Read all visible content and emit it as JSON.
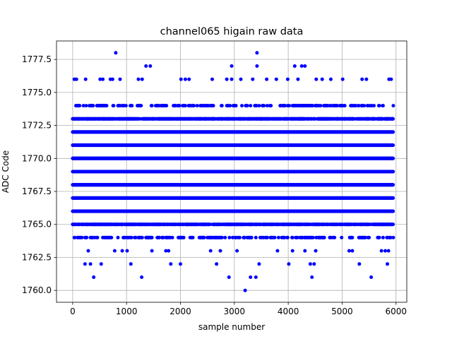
{
  "chart_data": {
    "type": "scatter",
    "title": "channel065 higain raw data",
    "xlabel": "sample number",
    "ylabel": "ADC Code",
    "xlim": [
      -300,
      6200
    ],
    "ylim": [
      1759.1,
      1778.9
    ],
    "xticks": [
      0,
      1000,
      2000,
      3000,
      4000,
      5000,
      6000
    ],
    "xtick_labels": [
      "0",
      "1000",
      "2000",
      "3000",
      "4000",
      "5000",
      "6000"
    ],
    "yticks": [
      1760.0,
      1762.5,
      1765.0,
      1767.5,
      1770.0,
      1772.5,
      1775.0,
      1777.5
    ],
    "ytick_labels": [
      "1760.0",
      "1762.5",
      "1765.0",
      "1767.5",
      "1770.0",
      "1772.5",
      "1775.0",
      "1777.5"
    ],
    "grid": true,
    "marker_color": "#0000ff",
    "series": [
      {
        "x_range": [
          0,
          5950
        ],
        "dense_levels": [
          1766,
          1767,
          1768,
          1769,
          1770,
          1771,
          1772
        ],
        "medium_levels": [
          1765,
          1773
        ],
        "sparse_levels": [
          1764,
          1774
        ],
        "outliers": [
          {
            "x": 800,
            "y": 1778
          },
          {
            "x": 3420,
            "y": 1778
          },
          {
            "x": 30,
            "y": 1776
          },
          {
            "x": 70,
            "y": 1776
          },
          {
            "x": 240,
            "y": 1776
          },
          {
            "x": 510,
            "y": 1776
          },
          {
            "x": 560,
            "y": 1776
          },
          {
            "x": 700,
            "y": 1776
          },
          {
            "x": 740,
            "y": 1776
          },
          {
            "x": 880,
            "y": 1776
          },
          {
            "x": 1220,
            "y": 1776
          },
          {
            "x": 1290,
            "y": 1776
          },
          {
            "x": 2010,
            "y": 1776
          },
          {
            "x": 2090,
            "y": 1776
          },
          {
            "x": 2160,
            "y": 1776
          },
          {
            "x": 2590,
            "y": 1776
          },
          {
            "x": 2860,
            "y": 1776
          },
          {
            "x": 2950,
            "y": 1776
          },
          {
            "x": 3120,
            "y": 1776
          },
          {
            "x": 3340,
            "y": 1776
          },
          {
            "x": 3600,
            "y": 1776
          },
          {
            "x": 3780,
            "y": 1776
          },
          {
            "x": 3990,
            "y": 1776
          },
          {
            "x": 4180,
            "y": 1776
          },
          {
            "x": 4520,
            "y": 1776
          },
          {
            "x": 4630,
            "y": 1776
          },
          {
            "x": 4790,
            "y": 1776
          },
          {
            "x": 5010,
            "y": 1776
          },
          {
            "x": 5370,
            "y": 1776
          },
          {
            "x": 5450,
            "y": 1776
          },
          {
            "x": 5870,
            "y": 1776
          },
          {
            "x": 5910,
            "y": 1776
          },
          {
            "x": 1360,
            "y": 1777
          },
          {
            "x": 1440,
            "y": 1777
          },
          {
            "x": 2950,
            "y": 1777
          },
          {
            "x": 3420,
            "y": 1777
          },
          {
            "x": 4120,
            "y": 1777
          },
          {
            "x": 4250,
            "y": 1777
          },
          {
            "x": 4310,
            "y": 1777
          },
          {
            "x": 290,
            "y": 1763
          },
          {
            "x": 780,
            "y": 1763
          },
          {
            "x": 920,
            "y": 1763
          },
          {
            "x": 1010,
            "y": 1763
          },
          {
            "x": 1470,
            "y": 1763
          },
          {
            "x": 1730,
            "y": 1763
          },
          {
            "x": 1780,
            "y": 1763
          },
          {
            "x": 2560,
            "y": 1763
          },
          {
            "x": 2740,
            "y": 1763
          },
          {
            "x": 3050,
            "y": 1763
          },
          {
            "x": 3800,
            "y": 1763
          },
          {
            "x": 4080,
            "y": 1763
          },
          {
            "x": 4310,
            "y": 1763
          },
          {
            "x": 4510,
            "y": 1763
          },
          {
            "x": 5130,
            "y": 1763
          },
          {
            "x": 5190,
            "y": 1763
          },
          {
            "x": 5730,
            "y": 1763
          },
          {
            "x": 5800,
            "y": 1763
          },
          {
            "x": 5860,
            "y": 1763
          },
          {
            "x": 230,
            "y": 1762
          },
          {
            "x": 330,
            "y": 1762
          },
          {
            "x": 530,
            "y": 1762
          },
          {
            "x": 1080,
            "y": 1762
          },
          {
            "x": 1820,
            "y": 1762
          },
          {
            "x": 2000,
            "y": 1762
          },
          {
            "x": 2670,
            "y": 1762
          },
          {
            "x": 3460,
            "y": 1762
          },
          {
            "x": 4010,
            "y": 1762
          },
          {
            "x": 4410,
            "y": 1762
          },
          {
            "x": 4480,
            "y": 1762
          },
          {
            "x": 5320,
            "y": 1762
          },
          {
            "x": 5840,
            "y": 1762
          },
          {
            "x": 390,
            "y": 1761
          },
          {
            "x": 1280,
            "y": 1761
          },
          {
            "x": 2900,
            "y": 1761
          },
          {
            "x": 3300,
            "y": 1761
          },
          {
            "x": 3400,
            "y": 1761
          },
          {
            "x": 4440,
            "y": 1761
          },
          {
            "x": 5540,
            "y": 1761
          },
          {
            "x": 3200,
            "y": 1760
          }
        ]
      }
    ]
  }
}
